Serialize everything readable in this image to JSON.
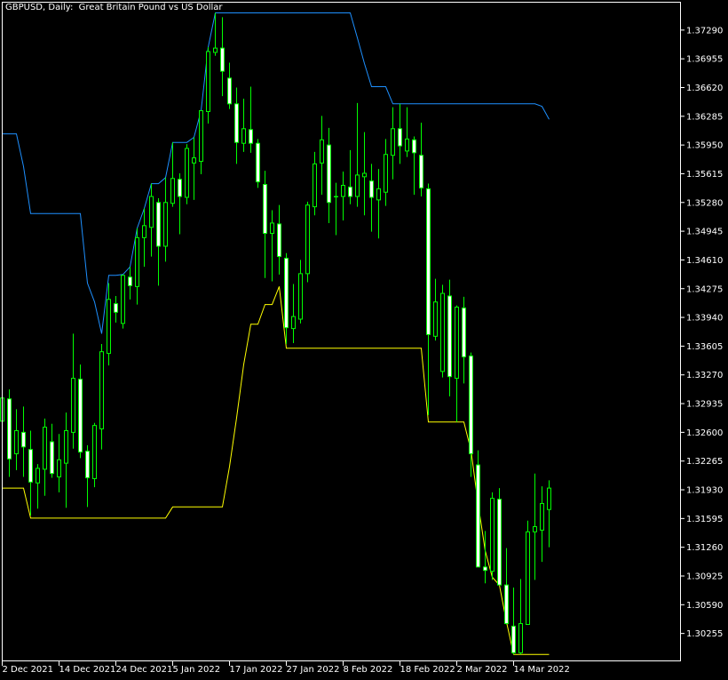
{
  "header": {
    "title": "GBPUSD, Daily:  Great Britain Pound vs US Dollar"
  },
  "chart_data": {
    "type": "candlestick",
    "title": "GBPUSD, Daily:  Great Britain Pound vs US Dollar",
    "symbol": "GBPUSD",
    "timeframe": "Daily",
    "ylim": [
      1.2993,
      1.3762
    ],
    "grid": false,
    "colors": {
      "background": "#000000",
      "candle": "#00ff00",
      "bear_body": "#ffffff",
      "bull_body": "#000000",
      "upper_band": "#1e90ff",
      "lower_band": "#ffff00",
      "axis": "#ffffff"
    },
    "yticks": [
      "1.37290",
      "1.36955",
      "1.36620",
      "1.36285",
      "1.35950",
      "1.35615",
      "1.35280",
      "1.34945",
      "1.34610",
      "1.34275",
      "1.33940",
      "1.33605",
      "1.33270",
      "1.32935",
      "1.32600",
      "1.32265",
      "1.31930",
      "1.31595",
      "1.31260",
      "1.30925",
      "1.30590",
      "1.30255"
    ],
    "xticks": [
      {
        "date": "2021-12-02",
        "label": "2 Dec 2021"
      },
      {
        "date": "2021-12-14",
        "label": "14 Dec 2021"
      },
      {
        "date": "2021-12-24",
        "label": "24 Dec 2021"
      },
      {
        "date": "2022-01-05",
        "label": "5 Jan 2022"
      },
      {
        "date": "2022-01-17",
        "label": "17 Jan 2022"
      },
      {
        "date": "2022-01-27",
        "label": "27 Jan 2022"
      },
      {
        "date": "2022-02-08",
        "label": "8 Feb 2022"
      },
      {
        "date": "2022-02-18",
        "label": "18 Feb 2022"
      },
      {
        "date": "2022-03-02",
        "label": "2 Mar 2022"
      },
      {
        "date": "2022-03-14",
        "label": "14 Mar 2022"
      }
    ],
    "dates": [
      "2021-12-02",
      "2021-12-03",
      "2021-12-06",
      "2021-12-07",
      "2021-12-08",
      "2021-12-09",
      "2021-12-10",
      "2021-12-13",
      "2021-12-14",
      "2021-12-15",
      "2021-12-16",
      "2021-12-17",
      "2021-12-20",
      "2021-12-21",
      "2021-12-22",
      "2021-12-23",
      "2021-12-24",
      "2021-12-27",
      "2021-12-28",
      "2021-12-29",
      "2021-12-30",
      "2021-12-31",
      "2022-01-03",
      "2022-01-04",
      "2022-01-05",
      "2022-01-06",
      "2022-01-07",
      "2022-01-10",
      "2022-01-11",
      "2022-01-12",
      "2022-01-13",
      "2022-01-14",
      "2022-01-17",
      "2022-01-18",
      "2022-01-19",
      "2022-01-20",
      "2022-01-21",
      "2022-01-24",
      "2022-01-25",
      "2022-01-26",
      "2022-01-27",
      "2022-01-28",
      "2022-01-31",
      "2022-02-01",
      "2022-02-02",
      "2022-02-03",
      "2022-02-04",
      "2022-02-07",
      "2022-02-08",
      "2022-02-09",
      "2022-02-10",
      "2022-02-11",
      "2022-02-14",
      "2022-02-15",
      "2022-02-16",
      "2022-02-17",
      "2022-02-18",
      "2022-02-21",
      "2022-02-22",
      "2022-02-23",
      "2022-02-24",
      "2022-02-25",
      "2022-02-28",
      "2022-03-01",
      "2022-03-02",
      "2022-03-03",
      "2022-03-04",
      "2022-03-07",
      "2022-03-08",
      "2022-03-09",
      "2022-03-10",
      "2022-03-11",
      "2022-03-14",
      "2022-03-15",
      "2022-03-16",
      "2022-03-17",
      "2022-03-18",
      "2022-03-21"
    ],
    "ohlc": [
      [
        1.3273,
        1.3311,
        1.3231,
        1.33
      ],
      [
        1.3299,
        1.331,
        1.3208,
        1.3229
      ],
      [
        1.3235,
        1.3287,
        1.3216,
        1.3262
      ],
      [
        1.326,
        1.329,
        1.3208,
        1.3243
      ],
      [
        1.324,
        1.3262,
        1.3163,
        1.3202
      ],
      [
        1.3201,
        1.3223,
        1.3171,
        1.3218
      ],
      [
        1.3217,
        1.3276,
        1.3186,
        1.3266
      ],
      [
        1.3249,
        1.327,
        1.3207,
        1.3212
      ],
      [
        1.3208,
        1.3258,
        1.319,
        1.3228
      ],
      [
        1.3224,
        1.3283,
        1.3172,
        1.3262
      ],
      [
        1.326,
        1.3375,
        1.3241,
        1.3323
      ],
      [
        1.3322,
        1.3339,
        1.323,
        1.3237
      ],
      [
        1.3238,
        1.3245,
        1.3173,
        1.3207
      ],
      [
        1.3206,
        1.3271,
        1.3196,
        1.3268
      ],
      [
        1.3264,
        1.3363,
        1.324,
        1.3354
      ],
      [
        1.3352,
        1.3434,
        1.3338,
        1.3415
      ],
      [
        1.341,
        1.3419,
        1.3388,
        1.34
      ],
      [
        1.3387,
        1.3444,
        1.3381,
        1.3443
      ],
      [
        1.3441,
        1.3453,
        1.3415,
        1.3431
      ],
      [
        1.343,
        1.3498,
        1.3409,
        1.3487
      ],
      [
        1.3487,
        1.3521,
        1.3453,
        1.3501
      ],
      [
        1.3499,
        1.355,
        1.3465,
        1.3535
      ],
      [
        1.3528,
        1.3533,
        1.3431,
        1.3477
      ],
      [
        1.3477,
        1.3557,
        1.3459,
        1.3528
      ],
      [
        1.3527,
        1.3598,
        1.3523,
        1.3556
      ],
      [
        1.3555,
        1.3562,
        1.3491,
        1.3535
      ],
      [
        1.3534,
        1.3596,
        1.3526,
        1.3591
      ],
      [
        1.3574,
        1.3604,
        1.3531,
        1.358
      ],
      [
        1.3576,
        1.3635,
        1.3561,
        1.3635
      ],
      [
        1.3634,
        1.3709,
        1.362,
        1.3704
      ],
      [
        1.3703,
        1.3749,
        1.3699,
        1.3708
      ],
      [
        1.3708,
        1.3744,
        1.3652,
        1.3681
      ],
      [
        1.3673,
        1.3691,
        1.3637,
        1.3643
      ],
      [
        1.3643,
        1.3662,
        1.3573,
        1.3598
      ],
      [
        1.3597,
        1.3649,
        1.3587,
        1.3614
      ],
      [
        1.3613,
        1.3663,
        1.3586,
        1.3597
      ],
      [
        1.3597,
        1.3602,
        1.3545,
        1.3552
      ],
      [
        1.3549,
        1.3565,
        1.344,
        1.3492
      ],
      [
        1.3492,
        1.3519,
        1.3436,
        1.3504
      ],
      [
        1.3503,
        1.3525,
        1.3444,
        1.3465
      ],
      [
        1.3463,
        1.3469,
        1.3363,
        1.3382
      ],
      [
        1.3381,
        1.3433,
        1.3364,
        1.3395
      ],
      [
        1.3392,
        1.3461,
        1.3387,
        1.3445
      ],
      [
        1.3445,
        1.3529,
        1.3435,
        1.3525
      ],
      [
        1.3523,
        1.3587,
        1.3513,
        1.3573
      ],
      [
        1.3574,
        1.3629,
        1.3537,
        1.3601
      ],
      [
        1.3595,
        1.3615,
        1.3504,
        1.3528
      ],
      [
        1.3535,
        1.3551,
        1.349,
        1.3535
      ],
      [
        1.3535,
        1.3564,
        1.3507,
        1.3548
      ],
      [
        1.3546,
        1.3589,
        1.3526,
        1.3535
      ],
      [
        1.3535,
        1.3644,
        1.3523,
        1.356
      ],
      [
        1.3558,
        1.361,
        1.3513,
        1.3562
      ],
      [
        1.3553,
        1.3573,
        1.3494,
        1.3534
      ],
      [
        1.3531,
        1.3567,
        1.3486,
        1.3544
      ],
      [
        1.354,
        1.3602,
        1.3524,
        1.3584
      ],
      [
        1.3583,
        1.3639,
        1.3555,
        1.3614
      ],
      [
        1.3614,
        1.3643,
        1.3573,
        1.3594
      ],
      [
        1.3588,
        1.3639,
        1.3581,
        1.3602
      ],
      [
        1.3601,
        1.3605,
        1.3537,
        1.3586
      ],
      [
        1.3583,
        1.3621,
        1.3535,
        1.3545
      ],
      [
        1.3544,
        1.355,
        1.328,
        1.3374
      ],
      [
        1.3372,
        1.3439,
        1.3367,
        1.3412
      ],
      [
        1.3331,
        1.3432,
        1.3324,
        1.3422
      ],
      [
        1.3419,
        1.3438,
        1.3302,
        1.3325
      ],
      [
        1.3323,
        1.3408,
        1.3272,
        1.3406
      ],
      [
        1.3405,
        1.3418,
        1.3317,
        1.3348
      ],
      [
        1.3349,
        1.3353,
        1.3208,
        1.3235
      ],
      [
        1.3222,
        1.3239,
        1.3103,
        1.3103
      ],
      [
        1.3103,
        1.3145,
        1.3084,
        1.3099
      ],
      [
        1.3098,
        1.319,
        1.3088,
        1.3183
      ],
      [
        1.3182,
        1.3195,
        1.3082,
        1.3082
      ],
      [
        1.3082,
        1.3125,
        1.3036,
        1.3037
      ],
      [
        1.3034,
        1.3079,
        1.3001,
        1.3003
      ],
      [
        1.3003,
        1.3089,
        1.3001,
        1.3037
      ],
      [
        1.3036,
        1.3157,
        1.3036,
        1.3144
      ],
      [
        1.3144,
        1.3212,
        1.3088,
        1.315
      ],
      [
        1.3146,
        1.3197,
        1.3109,
        1.3177
      ],
      [
        1.317,
        1.3204,
        1.3126,
        1.3195
      ]
    ],
    "upper_band": [
      1.3608,
      1.3608,
      1.3608,
      1.357,
      1.3515,
      1.3515,
      1.3515,
      1.3515,
      1.3515,
      1.3515,
      1.3515,
      1.3515,
      1.3434,
      1.3412,
      1.3375,
      1.3443,
      1.3443,
      1.3444,
      1.3453,
      1.3498,
      1.3521,
      1.355,
      1.355,
      1.3557,
      1.3598,
      1.3598,
      1.3598,
      1.3604,
      1.3635,
      1.3709,
      1.3749,
      1.3749,
      1.3749,
      1.3749,
      1.3749,
      1.3749,
      1.3749,
      1.3749,
      1.3749,
      1.3749,
      1.3749,
      1.3749,
      1.3749,
      1.3749,
      1.3749,
      1.3749,
      1.3749,
      1.3749,
      1.3749,
      1.3749,
      1.372,
      1.369,
      1.3663,
      1.3663,
      1.3663,
      1.3643,
      1.3643,
      1.3643,
      1.3643,
      1.3643,
      1.3643,
      1.3643,
      1.3643,
      1.3643,
      1.3643,
      1.3643,
      1.3643,
      1.3643,
      1.3643,
      1.3643,
      1.3643,
      1.3643,
      1.3643,
      1.3643,
      1.3643,
      1.3643,
      1.364,
      1.3625
    ],
    "lower_band": [
      1.3195,
      1.3195,
      1.3195,
      1.3195,
      1.316,
      1.316,
      1.316,
      1.316,
      1.316,
      1.316,
      1.316,
      1.316,
      1.316,
      1.316,
      1.316,
      1.316,
      1.316,
      1.316,
      1.316,
      1.316,
      1.316,
      1.316,
      1.316,
      1.316,
      1.3173,
      1.3173,
      1.3173,
      1.3173,
      1.3173,
      1.3173,
      1.3173,
      1.3173,
      1.322,
      1.3277,
      1.3339,
      1.3386,
      1.3386,
      1.3409,
      1.3409,
      1.343,
      1.3358,
      1.3358,
      1.3358,
      1.3358,
      1.3358,
      1.3358,
      1.3358,
      1.3358,
      1.3358,
      1.3358,
      1.3358,
      1.3358,
      1.3358,
      1.3358,
      1.3358,
      1.3358,
      1.3358,
      1.3358,
      1.3358,
      1.3358,
      1.3272,
      1.3272,
      1.3272,
      1.3272,
      1.3272,
      1.3272,
      1.3239,
      1.3177,
      1.3122,
      1.3091,
      1.3082,
      1.3039,
      1.3001,
      1.3001,
      1.3001,
      1.3001,
      1.3001,
      1.3001
    ]
  }
}
